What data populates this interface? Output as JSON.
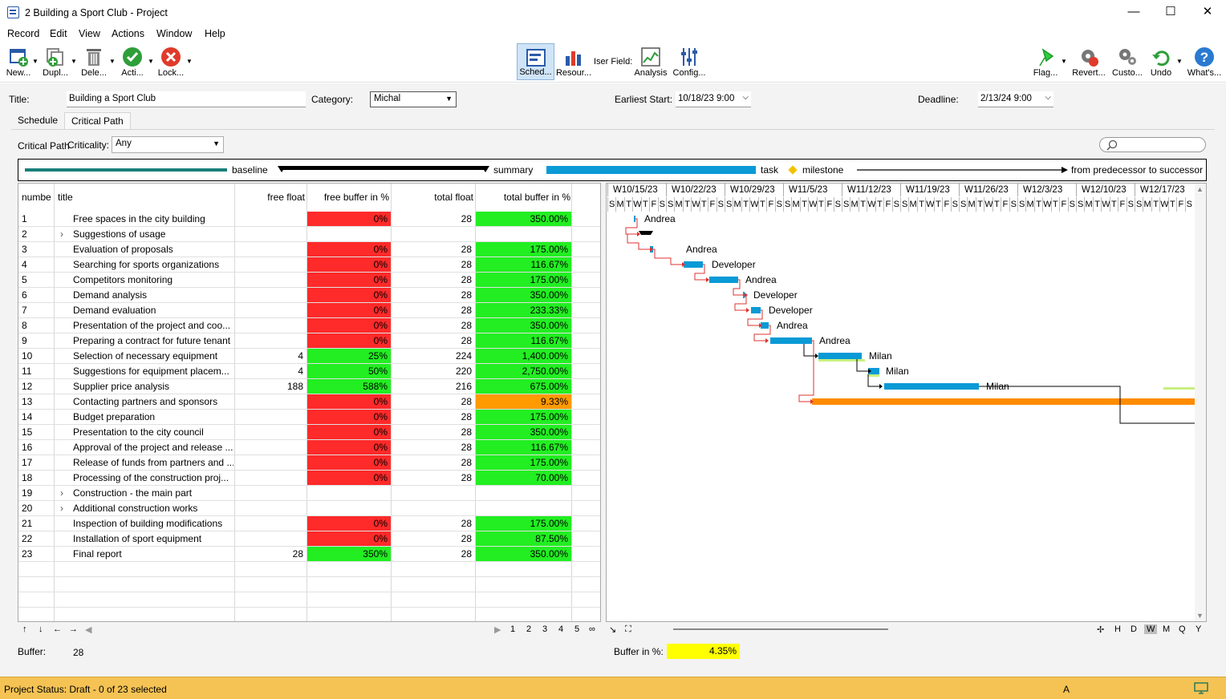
{
  "window": {
    "title": "2 Building a Sport Club - Project",
    "minimize": "—",
    "maximize": "☐",
    "close": "✕"
  },
  "menu": [
    "Record",
    "Edit",
    "View",
    "Actions",
    "Window",
    "Help"
  ],
  "toolbar": {
    "left": [
      {
        "label": "New...",
        "icon": "new-record-icon"
      },
      {
        "label": "Dupl...",
        "icon": "duplicate-icon"
      },
      {
        "label": "Dele...",
        "icon": "delete-icon"
      },
      {
        "label": "Acti...",
        "icon": "activate-icon"
      },
      {
        "label": "Lock...",
        "icon": "lock-icon"
      }
    ],
    "middle": [
      {
        "label": "Sched...",
        "icon": "schedule-icon",
        "selected": true
      },
      {
        "label": "Resour...",
        "icon": "resources-icon"
      },
      {
        "label": "Iser Field:",
        "icon": "user-field-icon"
      },
      {
        "label": "Analysis",
        "icon": "analysis-icon"
      },
      {
        "label": "Config...",
        "icon": "config-icon"
      }
    ],
    "right": [
      {
        "label": "Flag...",
        "icon": "flag-icon"
      },
      {
        "label": "Revert...",
        "icon": "revert-icon"
      },
      {
        "label": "Custo...",
        "icon": "customize-icon"
      },
      {
        "label": "Undo",
        "icon": "undo-icon"
      },
      {
        "label": "What's...",
        "icon": "help-icon"
      }
    ]
  },
  "form": {
    "title_label": "Title:",
    "title_value": "Building a Sport Club",
    "category_label": "Category:",
    "category_value": "Michal",
    "earliest_label": "Earliest Start:",
    "earliest_value": "10/18/23 9:00",
    "deadline_label": "Deadline:",
    "deadline_value": "2/13/24 9:00"
  },
  "tabs": [
    "Schedule",
    "Critical Path"
  ],
  "filter": {
    "label": "Critical Path",
    "criticality_label": "Criticality:",
    "criticality_value": "Any"
  },
  "legend": {
    "baseline": "baseline",
    "summary": "summary",
    "task": "task",
    "milestone": "milestone",
    "dependency": "from predecessor to successor"
  },
  "colors": {
    "red": "#ff2a2a",
    "green": "#22ee22",
    "orange": "#ff9a00",
    "task": "#0a9ad6",
    "baseline": "#1a7f7a",
    "status": "#f5c354"
  },
  "table": {
    "columns": [
      "numbe",
      "title",
      "free float",
      "free buffer in %",
      "total float",
      "total buffer in %"
    ],
    "rows": [
      {
        "n": "1",
        "t": "Free spaces in the city building",
        "ff": "",
        "fb": "0%",
        "fbc": "red",
        "tf": "28",
        "tb": "350.00%",
        "tbc": "grn",
        "exp": false
      },
      {
        "n": "2",
        "t": "Suggestions of usage",
        "ff": "",
        "fb": "",
        "fbc": "",
        "tf": "",
        "tb": "",
        "tbc": "",
        "exp": true
      },
      {
        "n": "3",
        "t": "Evaluation of proposals",
        "ff": "",
        "fb": "0%",
        "fbc": "red",
        "tf": "28",
        "tb": "175.00%",
        "tbc": "grn",
        "exp": false
      },
      {
        "n": "4",
        "t": "Searching for sports organizations",
        "ff": "",
        "fb": "0%",
        "fbc": "red",
        "tf": "28",
        "tb": "116.67%",
        "tbc": "grn",
        "exp": false
      },
      {
        "n": "5",
        "t": "Competitors monitoring",
        "ff": "",
        "fb": "0%",
        "fbc": "red",
        "tf": "28",
        "tb": "175.00%",
        "tbc": "grn",
        "exp": false
      },
      {
        "n": "6",
        "t": "Demand analysis",
        "ff": "",
        "fb": "0%",
        "fbc": "red",
        "tf": "28",
        "tb": "350.00%",
        "tbc": "grn",
        "exp": false
      },
      {
        "n": "7",
        "t": "Demand evaluation",
        "ff": "",
        "fb": "0%",
        "fbc": "red",
        "tf": "28",
        "tb": "233.33%",
        "tbc": "grn",
        "exp": false
      },
      {
        "n": "8",
        "t": "Presentation of the project and coo...",
        "ff": "",
        "fb": "0%",
        "fbc": "red",
        "tf": "28",
        "tb": "350.00%",
        "tbc": "grn",
        "exp": false
      },
      {
        "n": "9",
        "t": "Preparing a contract for future tenant",
        "ff": "",
        "fb": "0%",
        "fbc": "red",
        "tf": "28",
        "tb": "116.67%",
        "tbc": "grn",
        "exp": false
      },
      {
        "n": "10",
        "t": "Selection of necessary equipment",
        "ff": "4",
        "fb": "25%",
        "fbc": "grn",
        "tf": "224",
        "tb": "1,400.00%",
        "tbc": "grn",
        "exp": false
      },
      {
        "n": "11",
        "t": "Suggestions for equipment placem...",
        "ff": "4",
        "fb": "50%",
        "fbc": "grn",
        "tf": "220",
        "tb": "2,750.00%",
        "tbc": "grn",
        "exp": false
      },
      {
        "n": "12",
        "t": "Supplier price analysis",
        "ff": "188",
        "fb": "588%",
        "fbc": "grn",
        "tf": "216",
        "tb": "675.00%",
        "tbc": "grn",
        "exp": false
      },
      {
        "n": "13",
        "t": "Contacting partners and sponsors",
        "ff": "",
        "fb": "0%",
        "fbc": "red",
        "tf": "28",
        "tb": "9.33%",
        "tbc": "org",
        "exp": false
      },
      {
        "n": "14",
        "t": "Budget preparation",
        "ff": "",
        "fb": "0%",
        "fbc": "red",
        "tf": "28",
        "tb": "175.00%",
        "tbc": "grn",
        "exp": false
      },
      {
        "n": "15",
        "t": "Presentation to the city council",
        "ff": "",
        "fb": "0%",
        "fbc": "red",
        "tf": "28",
        "tb": "350.00%",
        "tbc": "grn",
        "exp": false
      },
      {
        "n": "16",
        "t": "Approval of the project and release ...",
        "ff": "",
        "fb": "0%",
        "fbc": "red",
        "tf": "28",
        "tb": "116.67%",
        "tbc": "grn",
        "exp": false
      },
      {
        "n": "17",
        "t": "Release of funds from partners and ...",
        "ff": "",
        "fb": "0%",
        "fbc": "red",
        "tf": "28",
        "tb": "175.00%",
        "tbc": "grn",
        "exp": false
      },
      {
        "n": "18",
        "t": "Processing of the construction proj...",
        "ff": "",
        "fb": "0%",
        "fbc": "red",
        "tf": "28",
        "tb": "70.00%",
        "tbc": "grn",
        "exp": false
      },
      {
        "n": "19",
        "t": "Construction - the main part",
        "ff": "",
        "fb": "",
        "fbc": "",
        "tf": "",
        "tb": "",
        "tbc": "",
        "exp": true
      },
      {
        "n": "20",
        "t": "Additional construction works",
        "ff": "",
        "fb": "",
        "fbc": "",
        "tf": "",
        "tb": "",
        "tbc": "",
        "exp": true
      },
      {
        "n": "21",
        "t": "Inspection of building modifications",
        "ff": "",
        "fb": "0%",
        "fbc": "red",
        "tf": "28",
        "tb": "175.00%",
        "tbc": "grn",
        "exp": false
      },
      {
        "n": "22",
        "t": "Installation of sport equipment",
        "ff": "",
        "fb": "0%",
        "fbc": "red",
        "tf": "28",
        "tb": "87.50%",
        "tbc": "grn",
        "exp": false
      },
      {
        "n": "23",
        "t": "Final report",
        "ff": "28",
        "fb": "350%",
        "fbc": "grn",
        "tf": "28",
        "tb": "350.00%",
        "tbc": "grn",
        "exp": false
      }
    ]
  },
  "gantt": {
    "weeks": [
      "W10/15/23",
      "W10/22/23",
      "W10/29/23",
      "W11/5/23",
      "W11/12/23",
      "W11/19/23",
      "W11/26/23",
      "W12/3/23",
      "W12/10/23",
      "W12/17/23"
    ],
    "days": [
      "S",
      "M",
      "T",
      "W",
      "T",
      "F",
      "S"
    ],
    "labels": [
      {
        "row": 0,
        "text": "Andrea"
      },
      {
        "row": 2,
        "text": "Andrea"
      },
      {
        "row": 3,
        "text": "Developer"
      },
      {
        "row": 4,
        "text": "Andrea"
      },
      {
        "row": 5,
        "text": "Developer"
      },
      {
        "row": 6,
        "text": "Developer"
      },
      {
        "row": 7,
        "text": "Andrea"
      },
      {
        "row": 8,
        "text": "Andrea"
      },
      {
        "row": 9,
        "text": "Milan"
      },
      {
        "row": 10,
        "text": "Milan"
      },
      {
        "row": 11,
        "text": "Milan"
      }
    ],
    "scales": [
      "H",
      "D",
      "W",
      "M",
      "Q",
      "Y"
    ],
    "active_scale": "W"
  },
  "pager": {
    "pages": [
      "1",
      "2",
      "3",
      "4",
      "5",
      "∞"
    ]
  },
  "footer": {
    "buffer_label": "Buffer:",
    "buffer_value": "28",
    "bufferpct_label": "Buffer in %:",
    "bufferpct_value": "4.35%"
  },
  "status": {
    "text": "Project Status: Draft - 0 of 23 selected",
    "mode": "A"
  }
}
